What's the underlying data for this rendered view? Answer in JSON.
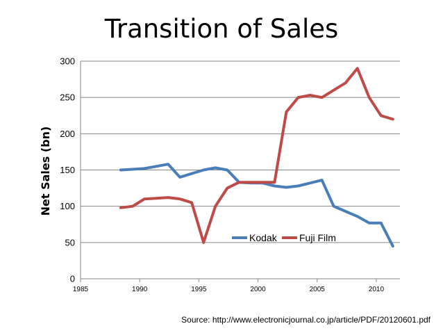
{
  "chart_data": {
    "type": "line",
    "title": "Transition of Sales",
    "ylabel": "Net Sales (bn)",
    "xlabel": "",
    "xlim": [
      1985,
      2012
    ],
    "ylim": [
      0,
      300
    ],
    "x_ticks": [
      1985,
      1990,
      1995,
      2000,
      2005,
      2010
    ],
    "y_ticks": [
      0,
      50,
      100,
      150,
      200,
      250,
      300
    ],
    "grid": "horizontal",
    "legend_position": "inside-bottom-right",
    "series": [
      {
        "name": "Kodak",
        "color": "#4a7ebb",
        "x": [
          1988.4,
          1989.4,
          1990.4,
          1991.4,
          1992.4,
          1993.4,
          1994.4,
          1995.4,
          1996.4,
          1997.4,
          1998.4,
          1999.4,
          2000.4,
          2001.4,
          2002.4,
          2003.4,
          2004.4,
          2005.4,
          2006.4,
          2007.4,
          2008.4,
          2009.4,
          2010.4,
          2011.4
        ],
        "y": [
          150,
          151,
          152,
          155,
          158,
          140,
          145,
          150,
          153,
          150,
          133,
          132,
          132,
          128,
          126,
          128,
          132,
          136,
          100,
          93,
          86,
          77,
          77,
          45
        ]
      },
      {
        "name": "Fuji Film",
        "color": "#be4b48",
        "x": [
          1988.4,
          1989.4,
          1990.4,
          1991.4,
          1992.4,
          1993.4,
          1994.4,
          1995.4,
          1996.4,
          1997.4,
          1998.4,
          1999.4,
          2000.4,
          2001.4,
          2002.4,
          2003.4,
          2004.4,
          2005.4,
          2006.4,
          2007.4,
          2008.4,
          2009.4,
          2010.4,
          2011.4
        ],
        "y": [
          98,
          100,
          110,
          111,
          112,
          110,
          105,
          50,
          100,
          125,
          133,
          133,
          133,
          133,
          230,
          250,
          253,
          250,
          260,
          270,
          290,
          250,
          225,
          220
        ]
      }
    ]
  },
  "source_text": "Source: http://www.electronicjournal.co.jp/article/PDF/20120601.pdf"
}
